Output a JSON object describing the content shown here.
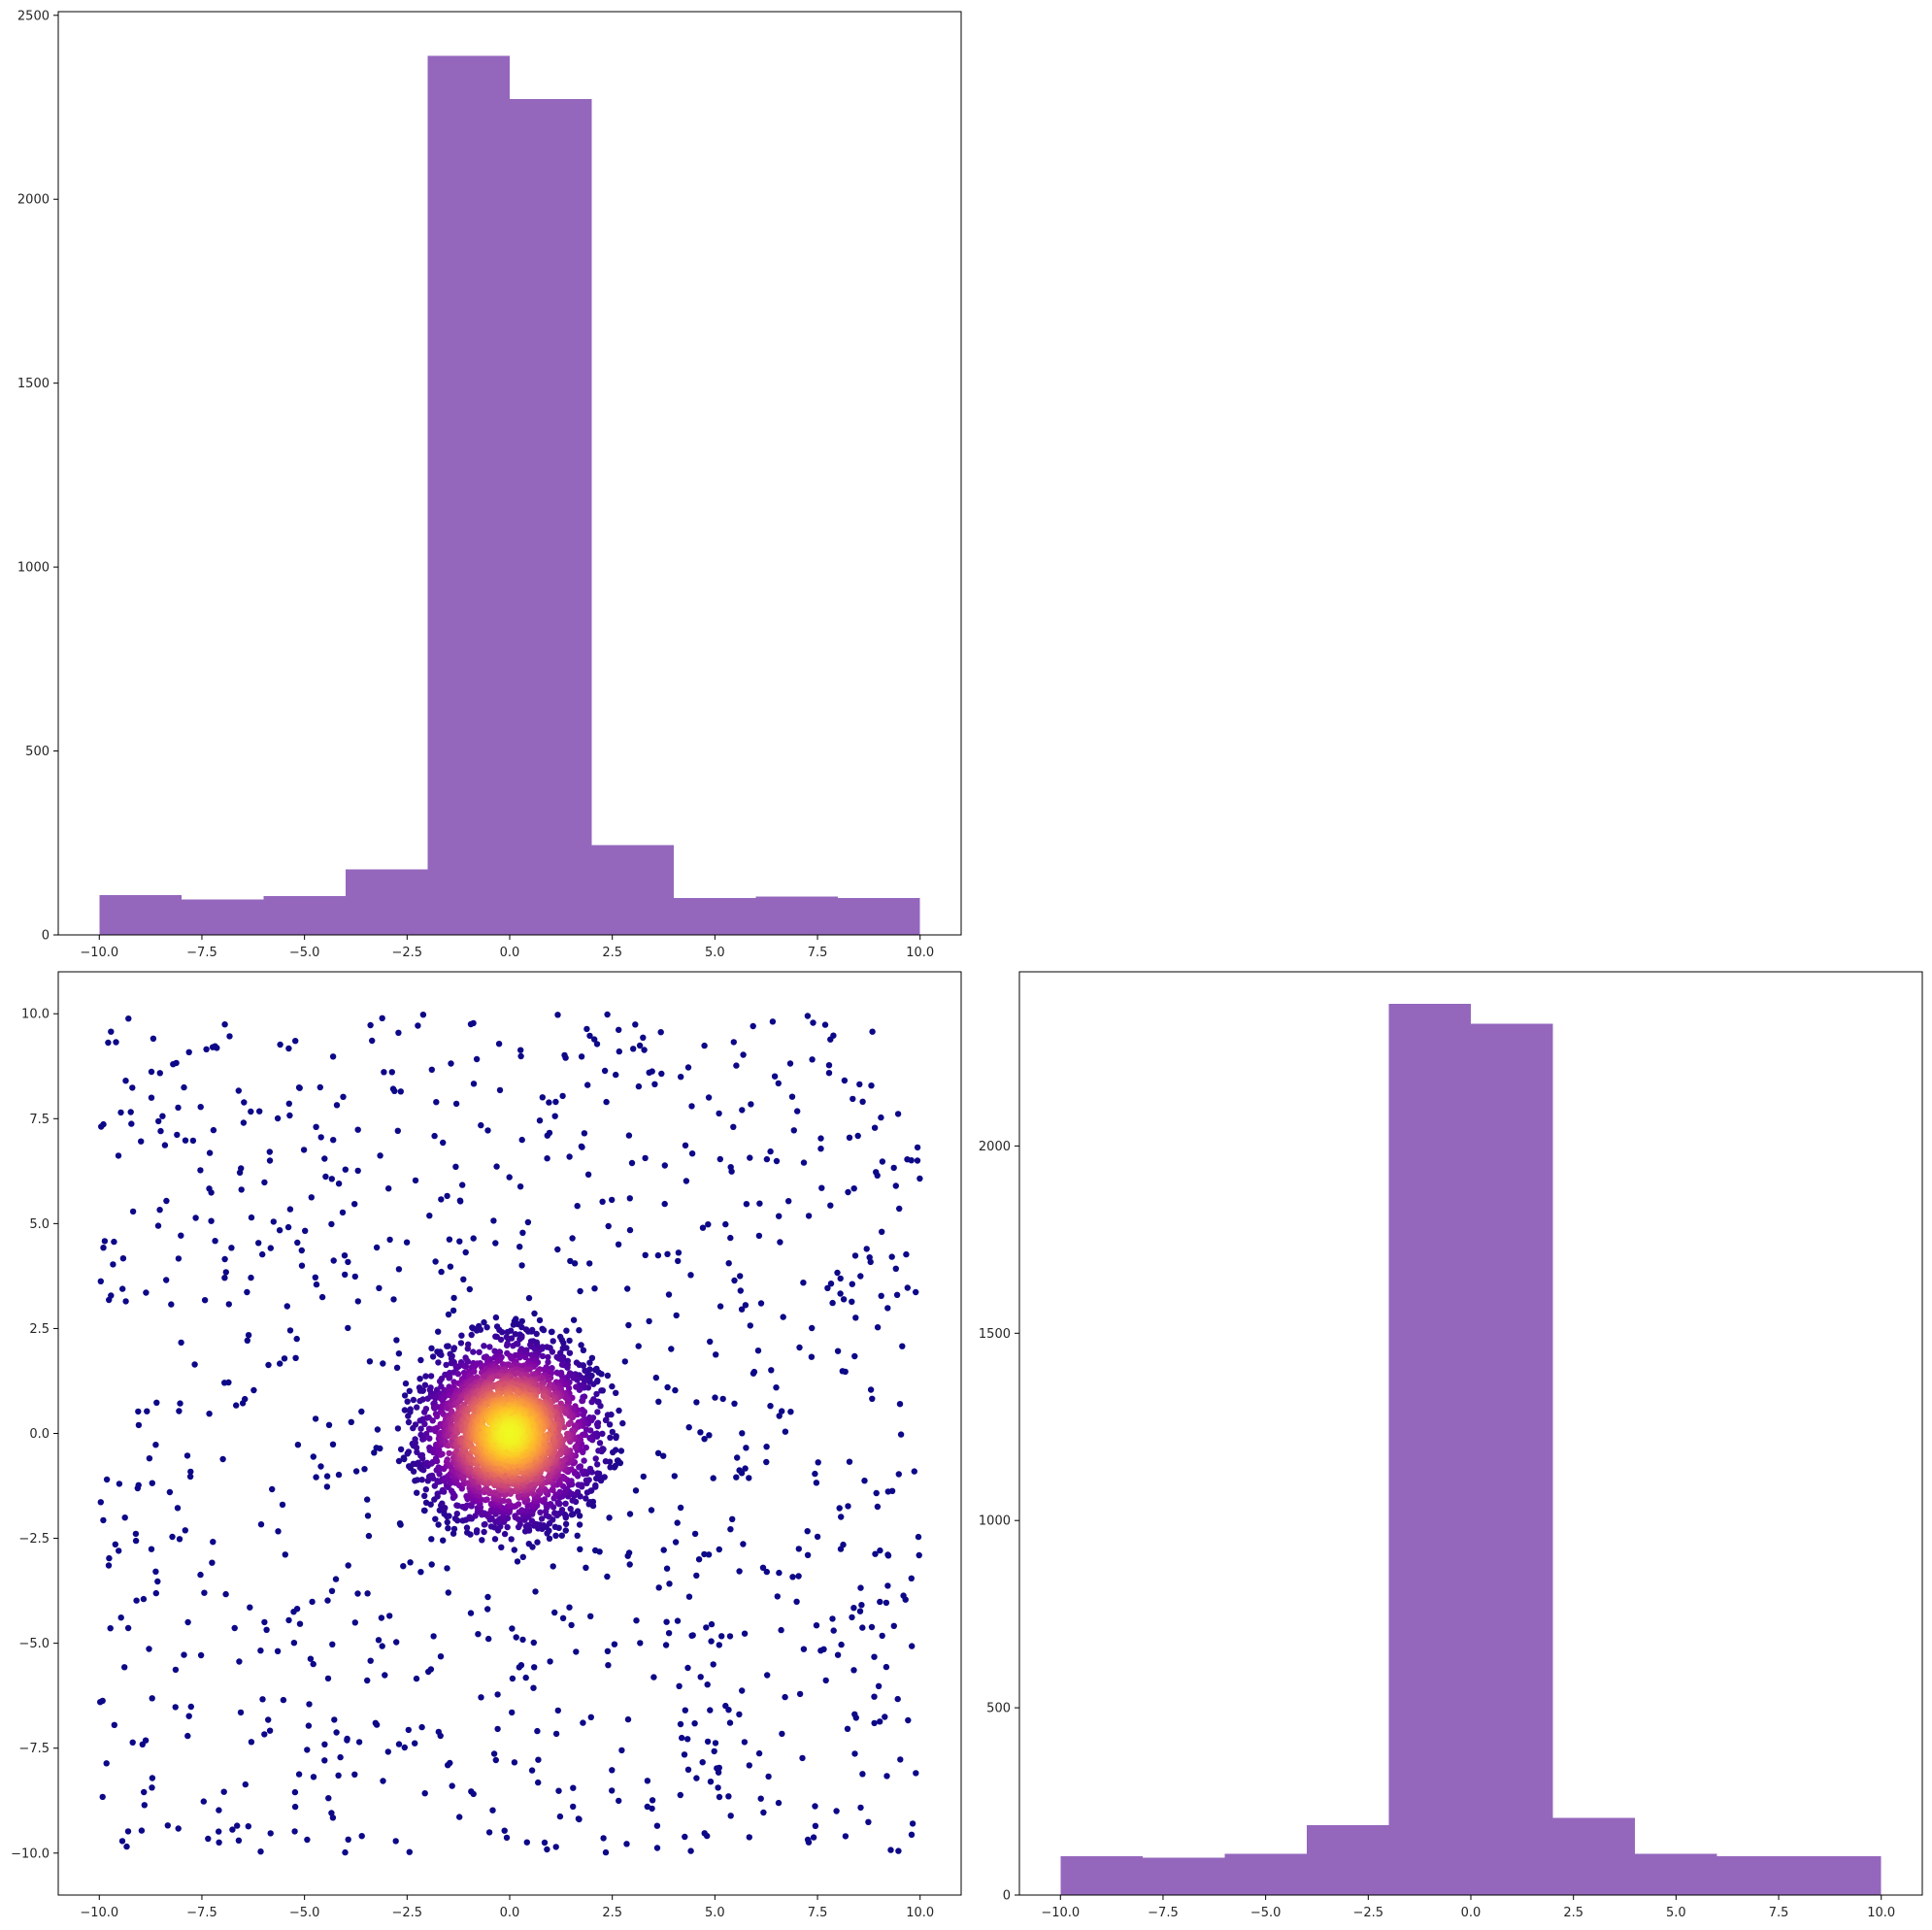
{
  "colors": {
    "hist_fill": "#9467bd",
    "scatter_low": "#0d0887",
    "scatter_mid": "#9c179e",
    "scatter_high": "#f0f921"
  },
  "chart_data": [
    {
      "id": "top-left-histogram",
      "type": "bar",
      "title": "",
      "xlabel": "",
      "ylabel": "",
      "bin_edges": [
        -10,
        -8,
        -6,
        -4,
        -2,
        0,
        2,
        4,
        6,
        8,
        10
      ],
      "values": [
        108,
        96,
        106,
        178,
        2390,
        2272,
        244,
        100,
        104,
        100
      ],
      "xlim": [
        -11.0,
        11.0
      ],
      "ylim": [
        0,
        2510
      ],
      "xticks": [
        -10.0,
        -7.5,
        -5.0,
        -2.5,
        0.0,
        2.5,
        5.0,
        7.5,
        10.0
      ],
      "xtick_labels": [
        "−10.0",
        "−7.5",
        "−5.0",
        "−2.5",
        "0.0",
        "2.5",
        "5.0",
        "7.5",
        "10.0"
      ],
      "yticks": [
        0,
        500,
        1000,
        1500,
        2000,
        2500
      ],
      "ytick_labels": [
        "0",
        "500",
        "1000",
        "1500",
        "2000",
        "2500"
      ],
      "grid": false
    },
    {
      "id": "bottom-left-scatter",
      "type": "scatter",
      "title": "",
      "xlabel": "",
      "ylabel": "",
      "description_of_data": "approx. 4000 points: ~1000 uniform background points on [-10,10]x[-10,10] plus a dense Gaussian cluster (sigma ~1.1) at the origin; color encodes local density (plasma colormap)",
      "background_points": 1000,
      "cluster_points": 3000,
      "cluster_center": [
        0,
        0
      ],
      "cluster_sigma": 1.1,
      "cluster_radius_max": 2.8,
      "uniform_range": [
        -10,
        10
      ],
      "colormap": "plasma",
      "xlim": [
        -11.0,
        11.0
      ],
      "ylim": [
        -11.0,
        11.0
      ],
      "xticks": [
        -10.0,
        -7.5,
        -5.0,
        -2.5,
        0.0,
        2.5,
        5.0,
        7.5,
        10.0
      ],
      "xtick_labels": [
        "−10.0",
        "−7.5",
        "−5.0",
        "−2.5",
        "0.0",
        "2.5",
        "5.0",
        "7.5",
        "10.0"
      ],
      "yticks": [
        -10.0,
        -7.5,
        -5.0,
        -2.5,
        0.0,
        2.5,
        5.0,
        7.5,
        10.0
      ],
      "ytick_labels": [
        "−10.0",
        "−7.5",
        "−5.0",
        "−2.5",
        "0.0",
        "2.5",
        "5.0",
        "7.5",
        "10.0"
      ],
      "grid": false
    },
    {
      "id": "bottom-right-histogram",
      "type": "bar",
      "title": "",
      "xlabel": "",
      "ylabel": "",
      "bin_edges": [
        -10,
        -8,
        -6,
        -4,
        -2,
        0,
        2,
        4,
        6,
        8,
        10
      ],
      "values": [
        104,
        100,
        110,
        186,
        2380,
        2326,
        206,
        110,
        104,
        104
      ],
      "xlim": [
        -11.0,
        11.0
      ],
      "ylim": [
        0,
        2465
      ],
      "xticks": [
        -10.0,
        -7.5,
        -5.0,
        -2.5,
        0.0,
        2.5,
        5.0,
        7.5,
        10.0
      ],
      "xtick_labels": [
        "−10.0",
        "−7.5",
        "−5.0",
        "−2.5",
        "0.0",
        "2.5",
        "5.0",
        "7.5",
        "10.0"
      ],
      "yticks": [
        0,
        500,
        1000,
        1500,
        2000
      ],
      "ytick_labels": [
        "0",
        "500",
        "1000",
        "1500",
        "2000"
      ],
      "grid": false
    }
  ]
}
